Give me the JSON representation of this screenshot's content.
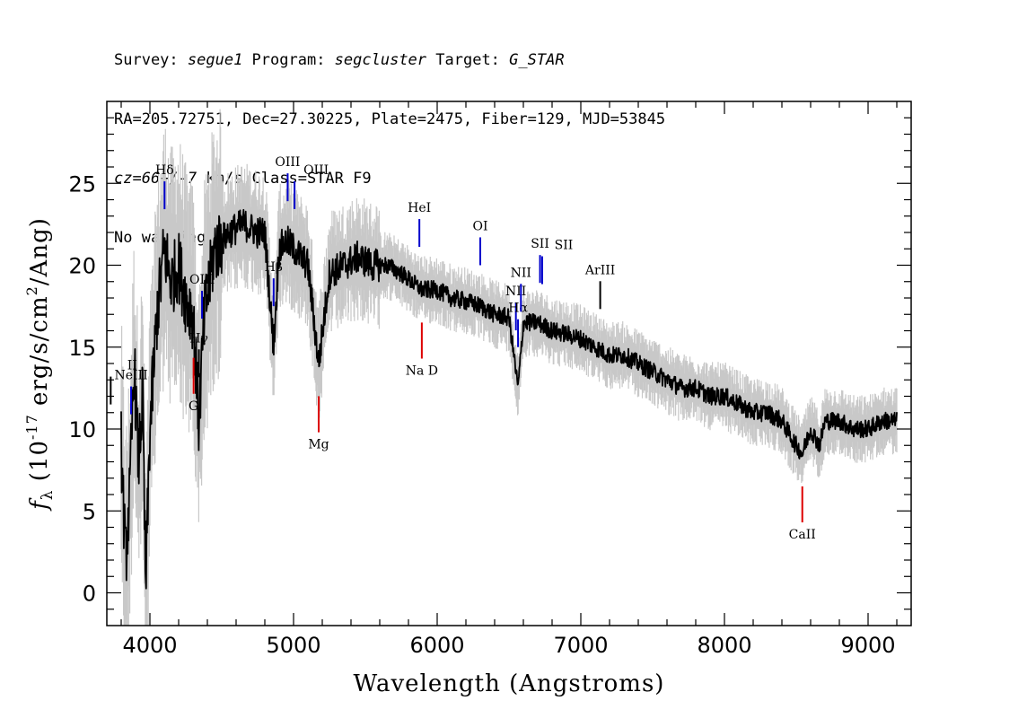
{
  "header": {
    "line1": {
      "survey_label": "Survey: ",
      "survey_value": "segue1",
      "program_label": " Program: ",
      "program_value": "segcluster",
      "target_label": " Target: ",
      "target_value": "G_STAR"
    },
    "line2": "RA=205.72751, Dec=27.30225, Plate=2475, Fiber=129, MJD=53845",
    "line3": {
      "cz_value": "cz=66+/-7",
      "rest": " km/s Class=STAR F9"
    },
    "line4": "No warnings."
  },
  "chart_data": {
    "type": "line",
    "xlabel": "Wavelength (Angstroms)",
    "ylabel": "f_λ (10^-17 erg/s/cm^2/Ang)",
    "xlim": [
      3700,
      9300
    ],
    "ylim": [
      -2,
      30
    ],
    "xticks": [
      4000,
      5000,
      6000,
      7000,
      8000,
      9000
    ],
    "yticks": [
      0,
      5,
      10,
      15,
      20,
      25
    ],
    "colors": {
      "flux": "#000000",
      "error_band": "#c8c8c8",
      "emission_line": "#0000cc",
      "absorption_line": "#dd0000",
      "sky_line": "#000000"
    },
    "series": [
      {
        "name": "flux",
        "x": [
          3800,
          3830,
          3860,
          3890,
          3920,
          3950,
          3970,
          4000,
          4050,
          4100,
          4150,
          4200,
          4250,
          4300,
          4340,
          4380,
          4450,
          4550,
          4650,
          4750,
          4800,
          4861,
          4900,
          4950,
          5000,
          5100,
          5175,
          5250,
          5350,
          5450,
          5550,
          5650,
          5750,
          5893,
          6000,
          6100,
          6200,
          6300,
          6400,
          6500,
          6563,
          6600,
          6700,
          6800,
          6900,
          7000,
          7100,
          7200,
          7300,
          7400,
          7500,
          7600,
          7700,
          7800,
          7900,
          8000,
          8100,
          8200,
          8300,
          8400,
          8498,
          8542,
          8600,
          8662,
          8700,
          8800,
          8900,
          9000,
          9100,
          9200
        ],
        "y": [
          9.0,
          2.0,
          6.0,
          14.0,
          8.0,
          12.0,
          0.0,
          10.0,
          17.0,
          21.0,
          19.0,
          20.0,
          18.0,
          17.0,
          10.5,
          17.0,
          21.0,
          22.0,
          22.5,
          22.0,
          22.0,
          15.0,
          21.0,
          21.5,
          21.0,
          20.0,
          14.0,
          19.5,
          20.0,
          20.5,
          20.0,
          20.0,
          19.5,
          18.5,
          18.5,
          18.0,
          17.8,
          17.5,
          17.0,
          16.8,
          12.5,
          16.5,
          16.5,
          16.0,
          15.8,
          15.5,
          15.0,
          14.5,
          14.5,
          14.0,
          13.5,
          13.0,
          12.5,
          12.5,
          12.0,
          12.0,
          11.5,
          11.0,
          11.0,
          10.5,
          9.0,
          8.5,
          10.0,
          9.0,
          10.5,
          10.5,
          10.0,
          10.0,
          10.5,
          10.5
        ]
      }
    ],
    "line_labels": [
      {
        "label": "Hδ",
        "wavelength": 4102,
        "kind": "emission"
      },
      {
        "label": "Hγ",
        "wavelength": 4341,
        "kind": "sky"
      },
      {
        "label": "OIII",
        "wavelength": 4363,
        "kind": "emission"
      },
      {
        "label": "Hβ",
        "wavelength": 4861,
        "kind": "emission"
      },
      {
        "label": "OIII",
        "wavelength": 4959,
        "kind": "emission"
      },
      {
        "label": "OIII",
        "wavelength": 5007,
        "kind": "emission"
      },
      {
        "label": "HeI",
        "wavelength": 5876,
        "kind": "emission"
      },
      {
        "label": "OI",
        "wavelength": 6300,
        "kind": "emission"
      },
      {
        "label": "NII",
        "wavelength": 6548,
        "kind": "emission"
      },
      {
        "label": "Hα",
        "wavelength": 6563,
        "kind": "emission"
      },
      {
        "label": "NII",
        "wavelength": 6583,
        "kind": "emission"
      },
      {
        "label": "SII",
        "wavelength": 6716,
        "kind": "emission"
      },
      {
        "label": "SII",
        "wavelength": 6731,
        "kind": "emission"
      },
      {
        "label": "ArIII",
        "wavelength": 7135,
        "kind": "sky"
      },
      {
        "label": "NeIII",
        "wavelength": 3869,
        "kind": "emission"
      },
      {
        "label": "II",
        "wavelength": 3727,
        "kind": "sky"
      },
      {
        "label": "G",
        "wavelength": 4304,
        "kind": "absorption"
      },
      {
        "label": "Mg",
        "wavelength": 5175,
        "kind": "absorption"
      },
      {
        "label": "Na D",
        "wavelength": 5893,
        "kind": "absorption"
      },
      {
        "label": "CaII",
        "wavelength": 8542,
        "kind": "absorption"
      }
    ]
  }
}
